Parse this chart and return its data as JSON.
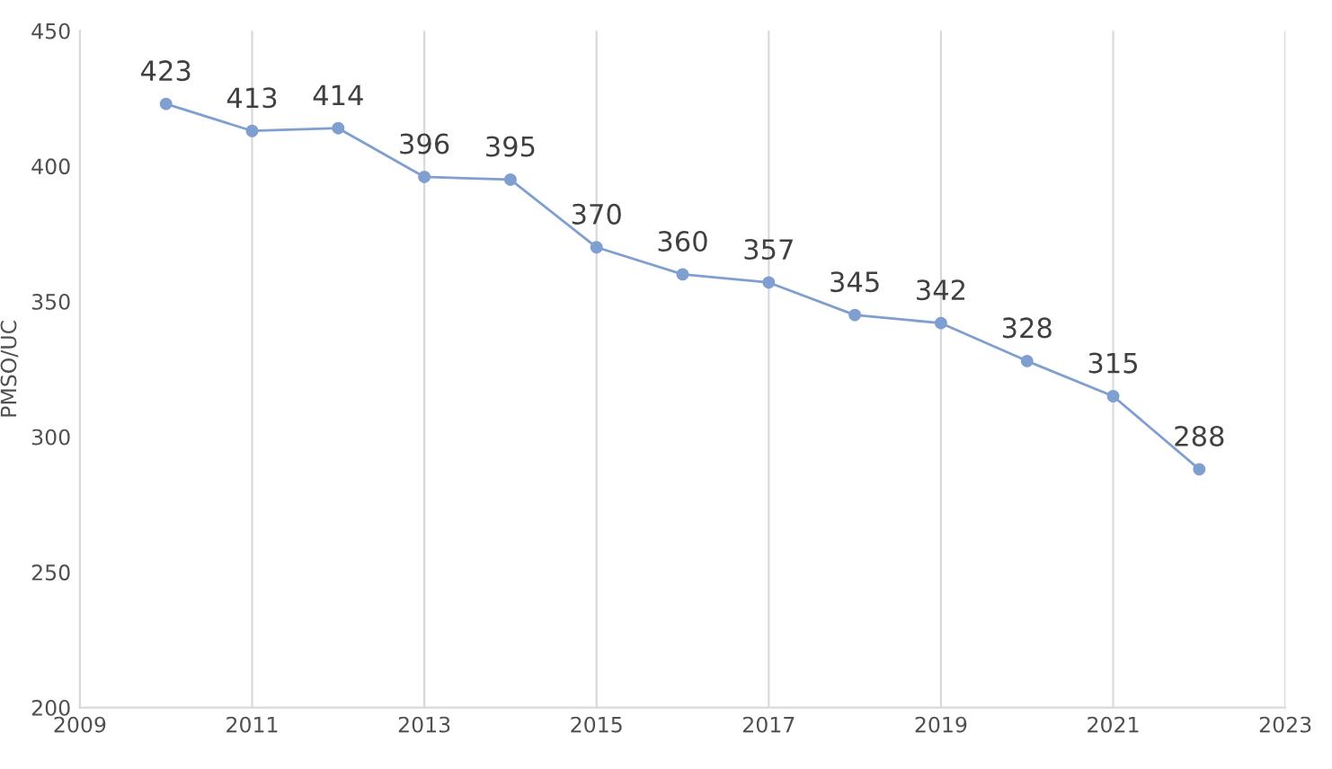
{
  "chart_data": {
    "type": "line",
    "ylabel": "PMSO/UC",
    "x": [
      2010,
      2011,
      2012,
      2013,
      2014,
      2015,
      2016,
      2017,
      2018,
      2019,
      2020,
      2021,
      2022
    ],
    "series": [
      {
        "color": "#7f9fd0",
        "values": [
          423,
          413,
          414,
          396,
          395,
          370,
          360,
          357,
          345,
          342,
          328,
          315,
          288
        ]
      }
    ],
    "xlim": [
      2009,
      2023
    ],
    "xticks": [
      2009,
      2011,
      2013,
      2015,
      2017,
      2019,
      2021,
      2023
    ],
    "ylim": [
      200,
      450
    ],
    "yticks": [
      200,
      250,
      300,
      350,
      400,
      450
    ],
    "grid": "x",
    "marker": "circle",
    "line_style": "solid",
    "data_labels": true
  }
}
